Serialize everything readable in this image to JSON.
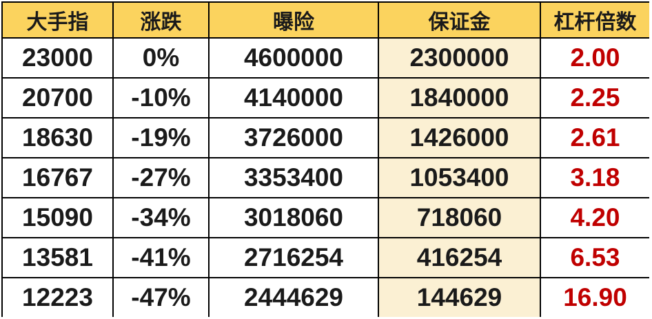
{
  "chart_data": {
    "type": "table",
    "title": "",
    "columns": [
      "大手指",
      "涨跌",
      "曝险",
      "保证金",
      "杠杆倍数"
    ],
    "rows": [
      [
        "23000",
        "0%",
        "4600000",
        "2300000",
        "2.00"
      ],
      [
        "20700",
        "-10%",
        "4140000",
        "1840000",
        "2.25"
      ],
      [
        "18630",
        "-19%",
        "3726000",
        "1426000",
        "2.61"
      ],
      [
        "16767",
        "-27%",
        "3353400",
        "1053400",
        "3.18"
      ],
      [
        "15090",
        "-34%",
        "3018060",
        "718060",
        "4.20"
      ],
      [
        "13581",
        "-41%",
        "2716254",
        "416254",
        "6.53"
      ],
      [
        "12223",
        "-47%",
        "2444629",
        "144629",
        "16.90"
      ]
    ]
  },
  "colors": {
    "header_bg": "#FBD35E",
    "margin_column_bg": "#FBF0D3",
    "leverage_text": "#C00000",
    "text": "#1A1A1A",
    "border": "#000000",
    "page_bg": "#FFFFFF"
  }
}
